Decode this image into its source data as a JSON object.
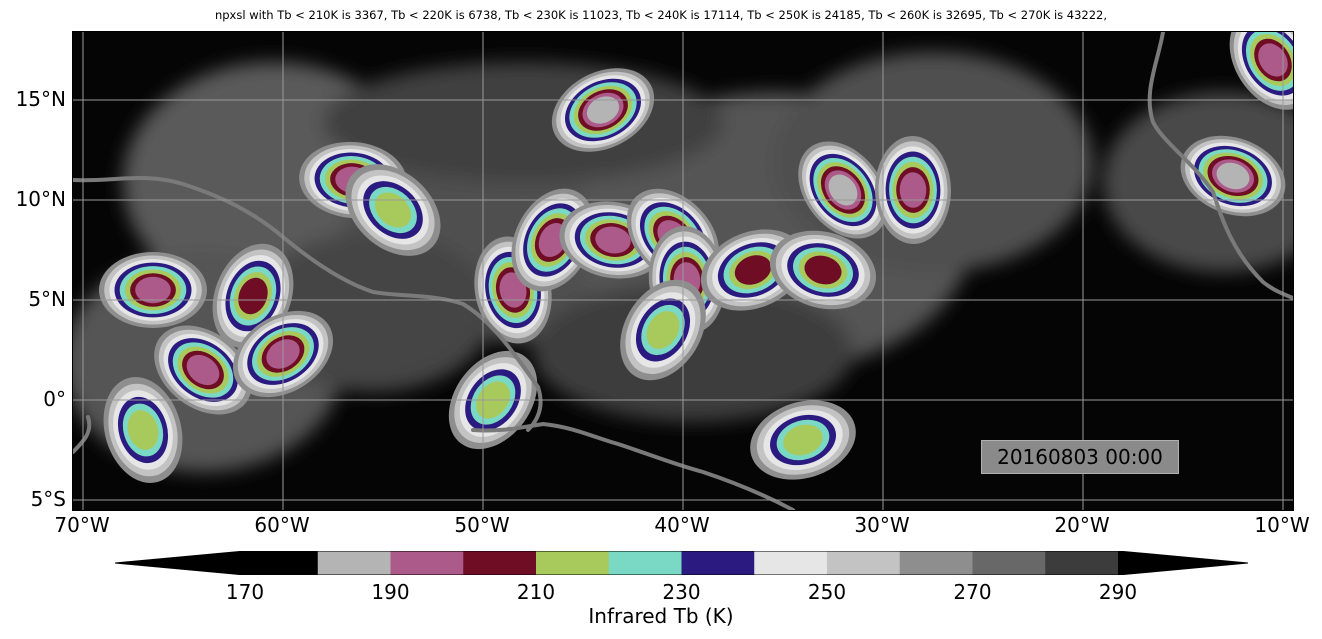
{
  "figure": {
    "title": "npxsl with Tb < 210K is 3367,  Tb < 220K is 6738,  Tb < 230K is 11023,  Tb < 240K is 17114,  Tb < 250K is 24185,  Tb < 260K is 32695,  Tb < 270K is 43222,",
    "timestamp": "20160803 00:00",
    "colorbar_label": "Infrared Tb (K)"
  },
  "map": {
    "lon_range": [
      -70,
      -10
    ],
    "lat_range": [
      -5,
      18
    ],
    "lat_ticks": [
      {
        "value": 15,
        "label": "15°N"
      },
      {
        "value": 10,
        "label": "10°N"
      },
      {
        "value": 5,
        "label": "5°N"
      },
      {
        "value": 0,
        "label": "0°"
      },
      {
        "value": -5,
        "label": "5°S"
      }
    ],
    "lon_ticks": [
      {
        "value": -70,
        "label": "70°W"
      },
      {
        "value": -60,
        "label": "60°W"
      },
      {
        "value": -50,
        "label": "50°W"
      },
      {
        "value": -40,
        "label": "40°W"
      },
      {
        "value": -30,
        "label": "30°W"
      },
      {
        "value": -20,
        "label": "20°W"
      },
      {
        "value": -10,
        "label": "10°W"
      }
    ],
    "background_color": "#050505",
    "coastline_color": "#7a7a7a",
    "grid": true
  },
  "colorbar": {
    "levels": [
      170,
      180,
      190,
      200,
      210,
      220,
      230,
      240,
      250,
      260,
      270,
      280,
      290
    ],
    "extend": "both",
    "colors": [
      "#000000",
      "#b4b4b4",
      "#ab5a8a",
      "#6f0d24",
      "#a8c95c",
      "#7ad9c4",
      "#2b1a80",
      "#e6e6e6",
      "#c3c3c3",
      "#8e8e8e",
      "#686868",
      "#3c3c3c",
      "#000000",
      "#000000"
    ],
    "tick_labels": [
      "170",
      "190",
      "210",
      "230",
      "250",
      "270",
      "290"
    ],
    "tick_values": [
      170,
      190,
      210,
      230,
      250,
      270,
      290
    ]
  },
  "cloud_systems": [
    {
      "lon": -66.5,
      "lat": 5.5,
      "min_tb": 200
    },
    {
      "lon": -64.0,
      "lat": 1.5,
      "min_tb": 200
    },
    {
      "lon": -67.0,
      "lat": -1.5,
      "min_tb": 220
    },
    {
      "lon": -61.5,
      "lat": 5.2,
      "min_tb": 210
    },
    {
      "lon": -60.0,
      "lat": 2.3,
      "min_tb": 200
    },
    {
      "lon": -56.5,
      "lat": 11.0,
      "min_tb": 200
    },
    {
      "lon": -54.5,
      "lat": 9.5,
      "min_tb": 220
    },
    {
      "lon": -48.5,
      "lat": 5.5,
      "min_tb": 200
    },
    {
      "lon": -46.5,
      "lat": 8.0,
      "min_tb": 200
    },
    {
      "lon": -44.0,
      "lat": 14.5,
      "min_tb": 190
    },
    {
      "lon": -43.5,
      "lat": 8.0,
      "min_tb": 200
    },
    {
      "lon": -40.5,
      "lat": 8.2,
      "min_tb": 200
    },
    {
      "lon": -39.8,
      "lat": 6.0,
      "min_tb": 200
    },
    {
      "lon": -41.0,
      "lat": 3.5,
      "min_tb": 220
    },
    {
      "lon": -36.5,
      "lat": 6.5,
      "min_tb": 210
    },
    {
      "lon": -33.0,
      "lat": 6.5,
      "min_tb": 210
    },
    {
      "lon": -32.0,
      "lat": 10.5,
      "min_tb": 190
    },
    {
      "lon": -28.5,
      "lat": 10.5,
      "min_tb": 200
    },
    {
      "lon": -49.5,
      "lat": 0.0,
      "min_tb": 220
    },
    {
      "lon": -34.0,
      "lat": -2.0,
      "min_tb": 220
    },
    {
      "lon": -12.5,
      "lat": 11.2,
      "min_tb": 190
    },
    {
      "lon": -10.5,
      "lat": 17.0,
      "min_tb": 200
    }
  ]
}
